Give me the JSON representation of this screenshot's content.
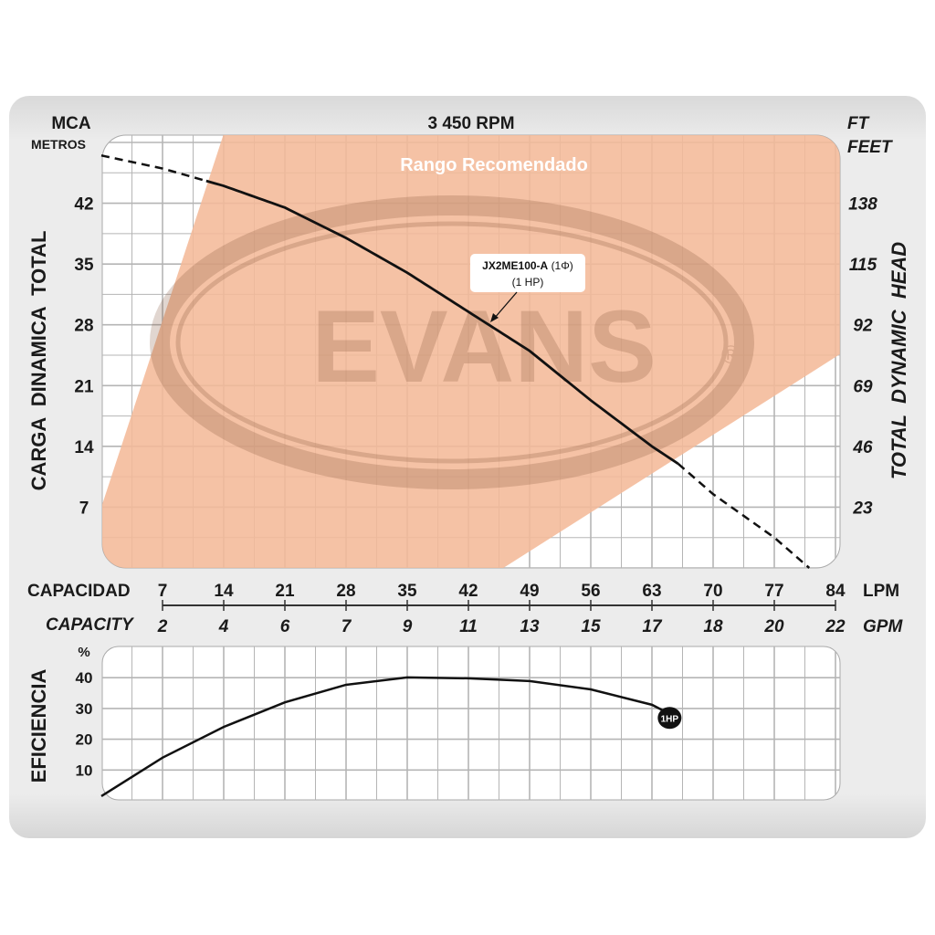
{
  "title": "3 450 RPM",
  "left_axis": {
    "unit": "MCA",
    "unit_sub": "METROS",
    "title": "CARGA  DINAMICA  TOTAL",
    "ticks": [
      "7",
      "14",
      "21",
      "28",
      "35",
      "42"
    ]
  },
  "right_axis": {
    "unit": "FT",
    "unit_sub": "FEET",
    "title": "TOTAL  DYNAMIC  HEAD",
    "ticks": [
      "23",
      "46",
      "69",
      "92",
      "115",
      "138"
    ]
  },
  "x_axis": {
    "lpm_label": "CAPACIDAD",
    "lpm_unit": "LPM",
    "lpm_ticks": [
      "7",
      "14",
      "21",
      "28",
      "35",
      "42",
      "49",
      "56",
      "63",
      "70",
      "77",
      "84"
    ],
    "gpm_label": "CAPACITY",
    "gpm_unit": "GPM",
    "gpm_ticks": [
      "2",
      "4",
      "6",
      "7",
      "9",
      "11",
      "13",
      "15",
      "17",
      "18",
      "20",
      "22"
    ]
  },
  "range_label": "Rango Recomendado",
  "curve_label": {
    "model": "JX2ME100-A",
    "phase": "(1Φ)",
    "power": "(1 HP)"
  },
  "efficiency_axis": {
    "title": "EFICIENCIA",
    "unit": "%",
    "ticks": [
      "10",
      "20",
      "30",
      "40"
    ]
  },
  "marker_label": "1HP",
  "logo": {
    "text": "EVANS",
    "mark": "®"
  },
  "colors": {
    "range": "#f4b999",
    "curve": "#111111",
    "grid": "#b5b5b5",
    "panel": "#e6e6e6"
  },
  "chart_data": [
    {
      "type": "line",
      "title": "3 450 RPM",
      "xlabel": "CAPACIDAD (LPM)",
      "ylabel": "CARGA DINAMICA TOTAL (MCA)",
      "xlim": [
        0,
        84.5
      ],
      "ylim": [
        0,
        50
      ],
      "grid": true,
      "series": [
        {
          "name": "JX2ME100-A (1Φ) (1 HP)",
          "x": [
            0,
            7,
            14,
            21,
            28,
            35,
            42,
            49,
            56,
            63,
            66,
            70,
            77,
            81
          ],
          "y": [
            47.5,
            46,
            44,
            41.5,
            38,
            34,
            29.5,
            25,
            19.3,
            14,
            12,
            8.5,
            3.5,
            0
          ],
          "solid_range": [
            12,
            66
          ]
        }
      ],
      "recommended_range": {
        "x": [
          14,
          0,
          0,
          46,
          84.5,
          84.5
        ],
        "y": [
          50,
          7,
          0,
          0,
          24.6,
          50
        ]
      }
    },
    {
      "type": "line",
      "xlabel": "CAPACIDAD (LPM)",
      "ylabel": "EFICIENCIA (%)",
      "xlim": [
        0,
        84.5
      ],
      "ylim": [
        0,
        50
      ],
      "grid": true,
      "series": [
        {
          "name": "1HP",
          "x": [
            0,
            7,
            14,
            21,
            28,
            35,
            42,
            49,
            56,
            63,
            64.5
          ],
          "y": [
            1.5,
            14,
            24,
            32,
            37.7,
            40.1,
            39.8,
            38.9,
            36.2,
            31.2,
            29
          ]
        }
      ]
    }
  ]
}
